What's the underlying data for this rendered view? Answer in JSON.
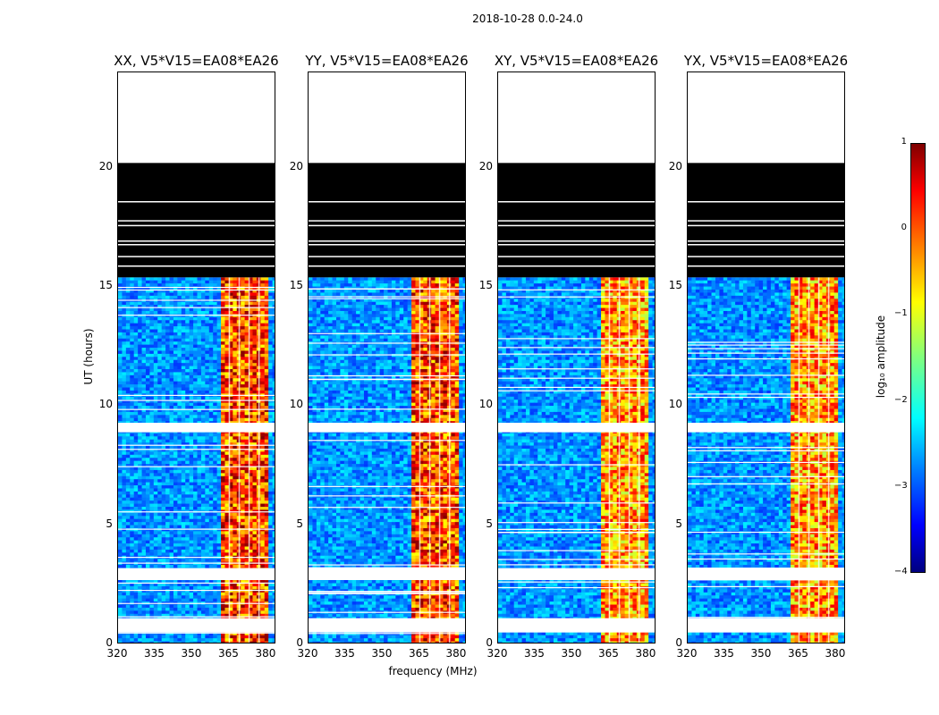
{
  "chart_data": {
    "type": "heatmap",
    "title": "2018-10-28 0.0-24.0",
    "xlabel": "frequency (MHz)",
    "ylabel": "UT (hours)",
    "xlim": [
      320,
      384
    ],
    "ylim": [
      0,
      24
    ],
    "xticks": [
      "320",
      "335",
      "350",
      "365",
      "380"
    ],
    "yticks": [
      "0",
      "5",
      "10",
      "15",
      "20"
    ],
    "colorbar": {
      "label": "log₁₀ amplitude",
      "range": [
        -4,
        1
      ],
      "ticks": [
        "1",
        "0",
        "−1",
        "−2",
        "−3",
        "−4"
      ],
      "colormap": "jet"
    },
    "panels": [
      {
        "title": "XX, V5*V15=EA08*EA26",
        "band_level": "high"
      },
      {
        "title": "YY, V5*V15=EA08*EA26",
        "band_level": "high"
      },
      {
        "title": "XY, V5*V15=EA08*EA26",
        "band_level": "medium"
      },
      {
        "title": "YX, V5*V15=EA08*EA26",
        "band_level": "medium"
      }
    ],
    "rfi_band_mhz": [
      361,
      381
    ],
    "flagged_black_ut": [
      15.4,
      20.2
    ],
    "no_data_ut": [
      20.2,
      24.0
    ],
    "gap_ut": [
      [
        2.7,
        3.2
      ],
      [
        8.9,
        9.3
      ],
      [
        0.5,
        1.1
      ]
    ]
  }
}
